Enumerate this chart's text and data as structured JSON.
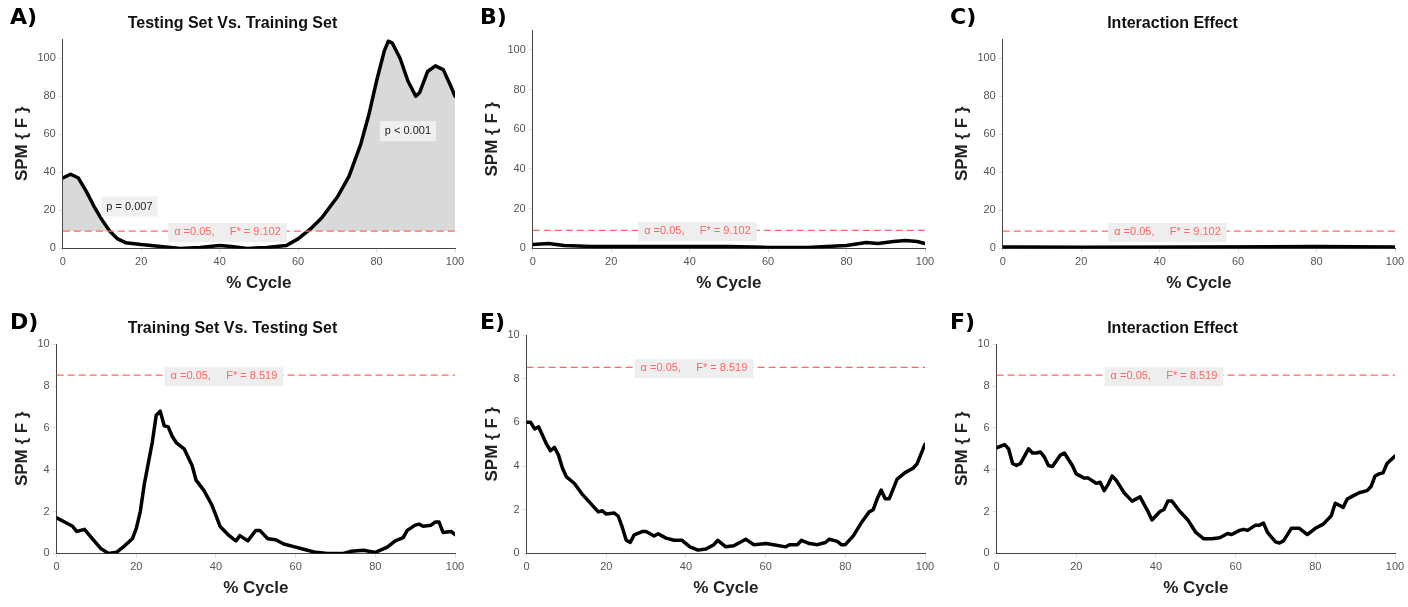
{
  "chart_data": [
    {
      "type": "line",
      "title": "Testing Set Vs. Training Set",
      "xlabel": "% Cycle",
      "ylabel": "SPM { F }",
      "xlim": [
        0,
        100
      ],
      "xticks": [
        0,
        20,
        40,
        60,
        80,
        100
      ],
      "ylim": [
        0,
        110
      ],
      "yticks": [
        0,
        20,
        40,
        60,
        80,
        100
      ],
      "annotations": [
        "A)",
        "p = 0.007",
        "p < 0.001"
      ],
      "ref_lines": [
        {
          "axis": "y",
          "value": 9.102,
          "label": "α =0.05,     F* = 9.102",
          "color": "#ff6666",
          "line_style": "dashed"
        }
      ],
      "series": [
        {
          "type": "area",
          "color": "#000000",
          "x": [
            0,
            2,
            4,
            6,
            8,
            10,
            12,
            14,
            16,
            20,
            25,
            30,
            35,
            40,
            43,
            47,
            52,
            57,
            60,
            63,
            66,
            70,
            73,
            76,
            78,
            80,
            82,
            83,
            84,
            86,
            88,
            90,
            91,
            93,
            95,
            97,
            99,
            100
          ],
          "values": [
            37,
            39,
            37,
            30,
            22,
            15,
            9,
            5,
            3,
            2,
            1,
            0,
            0.5,
            1.5,
            1,
            0,
            0.5,
            1.5,
            5,
            10,
            16,
            27,
            38,
            55,
            70,
            88,
            104,
            109,
            108,
            100,
            88,
            80,
            82,
            93,
            96,
            94,
            85,
            80
          ]
        }
      ]
    },
    {
      "type": "line",
      "xlabel": "% Cycle",
      "ylabel": "SPM { F }",
      "xlim": [
        0,
        100
      ],
      "xticks": [
        0,
        20,
        40,
        60,
        80,
        100
      ],
      "ylim": [
        0,
        110
      ],
      "yticks": [
        0,
        20,
        40,
        60,
        80,
        100
      ],
      "annotations": [
        "B)"
      ],
      "ref_lines": [
        {
          "axis": "y",
          "value": 9.102,
          "label": "α =0.05,     F* = 9.102",
          "color": "#ff6666",
          "line_style": "dashed"
        }
      ],
      "series": [
        {
          "color": "#000000",
          "x": [
            0,
            4,
            8,
            15,
            30,
            50,
            60,
            70,
            80,
            85,
            88,
            92,
            95,
            98,
            100
          ],
          "values": [
            2,
            2.5,
            1.5,
            1,
            1,
            1,
            0.5,
            0.5,
            1.5,
            3,
            2.5,
            3.5,
            4,
            3.5,
            2.5
          ]
        }
      ]
    },
    {
      "type": "line",
      "title": "Interaction Effect",
      "xlabel": "% Cycle",
      "ylabel": "SPM { F }",
      "xlim": [
        0,
        100
      ],
      "xticks": [
        0,
        20,
        40,
        60,
        80,
        100
      ],
      "ylim": [
        0,
        110
      ],
      "yticks": [
        0,
        20,
        40,
        60,
        80,
        100
      ],
      "annotations": [
        "C)"
      ],
      "ref_lines": [
        {
          "axis": "y",
          "value": 9.102,
          "label": "α =0.05,     F* = 9.102",
          "color": "#ff6666",
          "line_style": "dashed"
        }
      ],
      "series": [
        {
          "color": "#000000",
          "x": [
            0,
            20,
            50,
            80,
            100
          ],
          "values": [
            0.8,
            0.6,
            0.8,
            1,
            0.8
          ]
        }
      ]
    },
    {
      "type": "line",
      "title": "Training Set Vs. Testing Set",
      "xlabel": "% Cycle",
      "ylabel": "SPM { F }",
      "xlim": [
        0,
        100
      ],
      "xticks": [
        0,
        20,
        40,
        60,
        80,
        100
      ],
      "ylim": [
        0,
        10
      ],
      "yticks": [
        0,
        2,
        4,
        6,
        8,
        10
      ],
      "annotations": [
        "D)"
      ],
      "ref_lines": [
        {
          "axis": "y",
          "value": 8.519,
          "label": "α =0.05,     F* = 8.519",
          "color": "#ff6666",
          "line_style": "dashed"
        }
      ],
      "series": [
        {
          "color": "#000000",
          "x": [
            0,
            2,
            4,
            5,
            7,
            9,
            11,
            13,
            15,
            17,
            19,
            20,
            21,
            22,
            23,
            24,
            25,
            26,
            27,
            28,
            29,
            30,
            32,
            34,
            35,
            37,
            39,
            40,
            41,
            43,
            45,
            46,
            48,
            50,
            51,
            53,
            55,
            57,
            60,
            62,
            65,
            68,
            72,
            74,
            77,
            80,
            83,
            85,
            87,
            88,
            90,
            91,
            92,
            94,
            95,
            96,
            97,
            99,
            100
          ],
          "values": [
            1.7,
            1.5,
            1.3,
            1.05,
            1.15,
            0.7,
            0.25,
            0,
            0.05,
            0.35,
            0.7,
            1.2,
            2,
            3.3,
            4.3,
            5.3,
            6.6,
            6.8,
            6.1,
            6.05,
            5.6,
            5.3,
            5,
            4.2,
            3.5,
            3,
            2.3,
            1.8,
            1.3,
            0.9,
            0.6,
            0.85,
            0.6,
            1.1,
            1.1,
            0.7,
            0.65,
            0.45,
            0.3,
            0.2,
            0.05,
            0,
            0,
            0.1,
            0.15,
            0.05,
            0.3,
            0.6,
            0.75,
            1.1,
            1.35,
            1.4,
            1.3,
            1.35,
            1.5,
            1.5,
            1,
            1.05,
            0.9
          ]
        }
      ]
    },
    {
      "type": "line",
      "xlabel": "% Cycle",
      "ylabel": "SPM { F }",
      "xlim": [
        0,
        100
      ],
      "xticks": [
        0,
        20,
        40,
        60,
        80,
        100
      ],
      "ylim": [
        0,
        10
      ],
      "yticks": [
        0,
        2,
        4,
        6,
        8,
        10
      ],
      "annotations": [
        "E)"
      ],
      "ref_lines": [
        {
          "axis": "y",
          "value": 8.519,
          "label": "α =0.05,     F* = 8.519",
          "color": "#ff6666",
          "line_style": "dashed"
        }
      ],
      "series": [
        {
          "color": "#000000",
          "x": [
            0,
            1,
            2,
            3,
            5,
            6,
            7,
            8,
            9,
            10,
            12,
            14,
            16,
            18,
            19,
            20,
            22,
            23,
            24,
            25,
            26,
            27,
            29,
            30,
            32,
            33,
            35,
            37,
            39,
            41,
            43,
            45,
            47,
            48,
            50,
            52,
            55,
            57,
            60,
            62,
            65,
            66,
            68,
            69,
            71,
            73,
            75,
            76,
            78,
            79,
            80,
            82,
            84,
            86,
            87,
            88,
            89,
            90,
            91,
            93,
            95,
            97,
            98,
            100
          ],
          "values": [
            6,
            6,
            5.7,
            5.8,
            5,
            4.7,
            4.85,
            4.5,
            3.9,
            3.5,
            3.2,
            2.7,
            2.3,
            1.9,
            1.95,
            1.8,
            1.85,
            1.7,
            1.2,
            0.6,
            0.5,
            0.85,
            1,
            1,
            0.8,
            0.9,
            0.7,
            0.6,
            0.6,
            0.3,
            0.15,
            0.2,
            0.4,
            0.6,
            0.3,
            0.35,
            0.65,
            0.4,
            0.45,
            0.4,
            0.3,
            0.4,
            0.4,
            0.6,
            0.45,
            0.4,
            0.5,
            0.65,
            0.55,
            0.4,
            0.4,
            0.8,
            1.4,
            1.9,
            2,
            2.5,
            2.9,
            2.5,
            2.5,
            3.4,
            3.7,
            3.9,
            4.1,
            5
          ]
        }
      ]
    },
    {
      "type": "line",
      "title": "Interaction Effect",
      "xlabel": "% Cycle",
      "ylabel": "SPM { F }",
      "xlim": [
        0,
        100
      ],
      "xticks": [
        0,
        20,
        40,
        60,
        80,
        100
      ],
      "ylim": [
        0,
        10
      ],
      "yticks": [
        0,
        2,
        4,
        6,
        8,
        10
      ],
      "annotations": [
        "F)"
      ],
      "ref_lines": [
        {
          "axis": "y",
          "value": 8.519,
          "label": "α =0.05,     F* = 8.519",
          "color": "#ff6666",
          "line_style": "dashed"
        }
      ],
      "series": [
        {
          "color": "#000000",
          "x": [
            0,
            2,
            3,
            4,
            5,
            6,
            8,
            9,
            10,
            11,
            12,
            13,
            14,
            16,
            17,
            19,
            20,
            22,
            23,
            25,
            26,
            27,
            28,
            29,
            30,
            32,
            34,
            36,
            38,
            39,
            41,
            42,
            43,
            44,
            46,
            48,
            49,
            50,
            52,
            54,
            56,
            58,
            59,
            61,
            62,
            63,
            65,
            66,
            67,
            68,
            70,
            71,
            72,
            73,
            74,
            76,
            78,
            80,
            82,
            84,
            85,
            86,
            87,
            88,
            89,
            91,
            93,
            94,
            95,
            96,
            97,
            98,
            100
          ],
          "values": [
            5.05,
            5.2,
            5,
            4.3,
            4.2,
            4.3,
            5,
            4.8,
            4.8,
            4.85,
            4.6,
            4.2,
            4.15,
            4.7,
            4.8,
            4.2,
            3.8,
            3.6,
            3.6,
            3.35,
            3.4,
            3,
            3.3,
            3.7,
            3.5,
            2.9,
            2.5,
            2.7,
            2,
            1.6,
            2,
            2.1,
            2.5,
            2.5,
            2,
            1.6,
            1.3,
            1,
            0.7,
            0.7,
            0.75,
            0.95,
            0.9,
            1.1,
            1.15,
            1.1,
            1.35,
            1.35,
            1.45,
            1,
            0.55,
            0.5,
            0.6,
            0.9,
            1.2,
            1.2,
            0.9,
            1.2,
            1.4,
            1.8,
            2.4,
            2.3,
            2.2,
            2.6,
            2.7,
            2.9,
            3,
            3.2,
            3.7,
            3.8,
            3.85,
            4.3,
            4.65
          ]
        }
      ]
    }
  ]
}
